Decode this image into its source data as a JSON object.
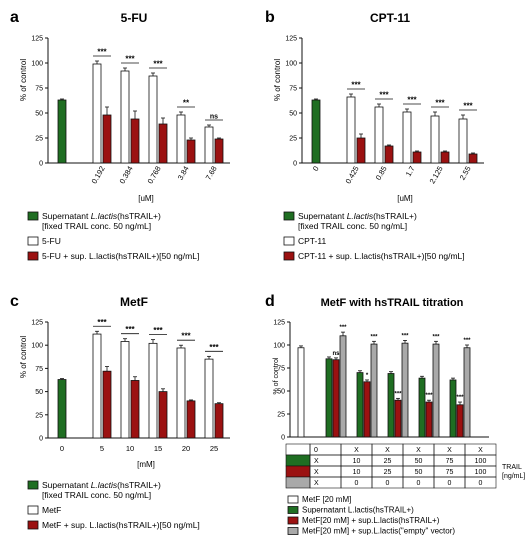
{
  "colors": {
    "green": "#1f6e22",
    "red": "#9b1111",
    "white": "#ffffff",
    "gray": "#a9a9a9",
    "axis": "#111111"
  },
  "panels": [
    {
      "letter": "a",
      "title": "5-FU",
      "ylabel": "% of control",
      "unit": "[uM]",
      "legend": [
        {
          "color": "green",
          "lines": [
            "Supernatant ",
            "L.lactis",
            "(hsTRAIL+)"
          ],
          "sub": "[fixed TRAIL conc. 50 ng/mL]"
        },
        {
          "color": "white",
          "text": "5-FU"
        },
        {
          "color": "red",
          "text": "5-FU + sup. L.lactis(hsTRAIL+)[50 ng/mL]"
        }
      ]
    },
    {
      "letter": "b",
      "title": "CPT-11",
      "ylabel": "% of control",
      "unit": "[uM]",
      "legend": [
        {
          "color": "green",
          "lines": [
            "Supernatant ",
            "L.lactis",
            "(hsTRAIL+)"
          ],
          "sub": "[fixed TRAIL conc. 50 ng/mL]"
        },
        {
          "color": "white",
          "text": "CPT-11"
        },
        {
          "color": "red",
          "text": "CPT-11 + sup. L.lactis(hsTRAIL+)[50 ng/mL]"
        }
      ]
    },
    {
      "letter": "c",
      "title": "MetF",
      "ylabel": "% of control",
      "unit": "[mM]",
      "legend": [
        {
          "color": "green",
          "lines": [
            "Supernatant  ",
            "L.lactis",
            "(hsTRAIL+)"
          ],
          "sub": "[fixed TRAIL conc. 50 ng/mL]"
        },
        {
          "color": "white",
          "text": "MetF"
        },
        {
          "color": "red",
          "text": "MetF + sup. L.lactis(hsTRAIL+)[50 ng/mL]"
        }
      ]
    },
    {
      "letter": "d",
      "title": "MetF with hsTRAIL titration",
      "ylabel": "% of control",
      "table": {
        "rows": [
          {
            "swatch": "white",
            "cells": [
              "0",
              "X",
              "X",
              "X",
              "X",
              "X"
            ]
          },
          {
            "swatch": "green",
            "cells": [
              "X",
              "10",
              "25",
              "50",
              "75",
              "100"
            ]
          },
          {
            "swatch": "red",
            "cells": [
              "X",
              "10",
              "25",
              "50",
              "75",
              "100"
            ]
          },
          {
            "swatch": "gray",
            "cells": [
              "X",
              "0",
              "0",
              "0",
              "0",
              "0"
            ]
          }
        ],
        "side_label": [
          "TRAIL",
          "[ng/mL]"
        ]
      },
      "legend": [
        {
          "color": "white",
          "text": "MetF [20 mM]"
        },
        {
          "color": "green",
          "text": "Supernatant L.lactis(hsTRAIL+)"
        },
        {
          "color": "red",
          "text": "MetF[20 mM] + sup.L.lactis(hsTRAIL+)"
        },
        {
          "color": "gray",
          "text": "MetF[20 mM] + sup.L.lactis(\"empty\" vector)"
        }
      ]
    }
  ],
  "chart_data": [
    {
      "type": "bar",
      "title": "5-FU",
      "ylabel": "% of control",
      "xlabel": "[uM]",
      "ylim": [
        0,
        125
      ],
      "yticks": [
        0,
        25,
        50,
        75,
        100,
        125
      ],
      "categories": [
        "",
        "0.192",
        "0.384",
        "0.768",
        "3.84",
        "7.68"
      ],
      "series": [
        {
          "color": "green",
          "values": [
            63,
            null,
            null,
            null,
            null,
            null
          ],
          "errors": [
            1,
            null,
            null,
            null,
            null,
            null
          ]
        },
        {
          "color": "white",
          "values": [
            null,
            99,
            92,
            87,
            48,
            36
          ],
          "errors": [
            null,
            3,
            3,
            3,
            3,
            2
          ]
        },
        {
          "color": "red",
          "values": [
            null,
            48,
            44,
            39,
            23,
            24
          ],
          "errors": [
            null,
            8,
            8,
            6,
            2,
            1
          ]
        }
      ],
      "significance": [
        "",
        "***",
        "***",
        "***",
        "**",
        "ns"
      ]
    },
    {
      "type": "bar",
      "title": "CPT-11",
      "ylabel": "% of control",
      "xlabel": "[uM]",
      "ylim": [
        0,
        125
      ],
      "yticks": [
        0,
        25,
        50,
        75,
        100,
        125
      ],
      "categories": [
        "0",
        "0.425",
        "0.85",
        "1.7",
        "2.125",
        "2.55"
      ],
      "series": [
        {
          "color": "green",
          "values": [
            63,
            null,
            null,
            null,
            null,
            null
          ],
          "errors": [
            1,
            null,
            null,
            null,
            null,
            null
          ]
        },
        {
          "color": "white",
          "values": [
            null,
            66,
            56,
            51,
            47,
            44
          ],
          "errors": [
            null,
            3,
            3,
            3,
            4,
            4
          ]
        },
        {
          "color": "red",
          "values": [
            null,
            25,
            17,
            11,
            11,
            9
          ],
          "errors": [
            null,
            4,
            1,
            1,
            1,
            1
          ]
        }
      ],
      "significance": [
        "",
        "***",
        "***",
        "***",
        "***",
        "***"
      ]
    },
    {
      "type": "bar",
      "title": "MetF",
      "ylabel": "% of control",
      "xlabel": "[mM]",
      "ylim": [
        0,
        125
      ],
      "yticks": [
        0,
        25,
        50,
        75,
        100,
        125
      ],
      "categories": [
        "0",
        "5",
        "10",
        "15",
        "20",
        "25"
      ],
      "series": [
        {
          "color": "green",
          "values": [
            63,
            null,
            null,
            null,
            null,
            null
          ],
          "errors": [
            1,
            null,
            null,
            null,
            null,
            null
          ]
        },
        {
          "color": "white",
          "values": [
            null,
            112,
            104,
            102,
            97,
            85
          ],
          "errors": [
            null,
            3,
            3,
            4,
            3,
            3
          ]
        },
        {
          "color": "red",
          "values": [
            null,
            72,
            62,
            50,
            40,
            37
          ],
          "errors": [
            null,
            5,
            4,
            3,
            1,
            1
          ]
        }
      ],
      "significance": [
        "",
        "***",
        "***",
        "***",
        "***",
        "***"
      ]
    },
    {
      "type": "bar",
      "title": "MetF with hsTRAIL titration",
      "ylabel": "% of control",
      "ylim": [
        0,
        125
      ],
      "yticks": [
        0,
        25,
        50,
        75,
        100,
        125
      ],
      "groups": [
        {
          "bars": [
            {
              "color": "white",
              "value": 97,
              "error": 2
            }
          ],
          "sig": []
        },
        {
          "bars": [
            {
              "color": "green",
              "value": 85,
              "error": 2
            },
            {
              "color": "red",
              "value": 84,
              "error": 2
            },
            {
              "color": "gray",
              "value": 110,
              "error": 4
            }
          ],
          "sig": [
            "ns",
            "***"
          ]
        },
        {
          "bars": [
            {
              "color": "green",
              "value": 70,
              "error": 2
            },
            {
              "color": "red",
              "value": 60,
              "error": 2
            },
            {
              "color": "gray",
              "value": 101,
              "error": 3
            }
          ],
          "sig": [
            "*",
            "***"
          ]
        },
        {
          "bars": [
            {
              "color": "green",
              "value": 69,
              "error": 2
            },
            {
              "color": "red",
              "value": 40,
              "error": 2
            },
            {
              "color": "gray",
              "value": 102,
              "error": 3
            }
          ],
          "sig": [
            "***",
            "***"
          ]
        },
        {
          "bars": [
            {
              "color": "green",
              "value": 64,
              "error": 2
            },
            {
              "color": "red",
              "value": 38,
              "error": 2
            },
            {
              "color": "gray",
              "value": 101,
              "error": 3
            }
          ],
          "sig": [
            "***",
            "***"
          ]
        },
        {
          "bars": [
            {
              "color": "green",
              "value": 62,
              "error": 2
            },
            {
              "color": "red",
              "value": 35,
              "error": 3
            },
            {
              "color": "gray",
              "value": 97,
              "error": 3
            }
          ],
          "sig": [
            "***",
            "***"
          ]
        }
      ]
    }
  ]
}
